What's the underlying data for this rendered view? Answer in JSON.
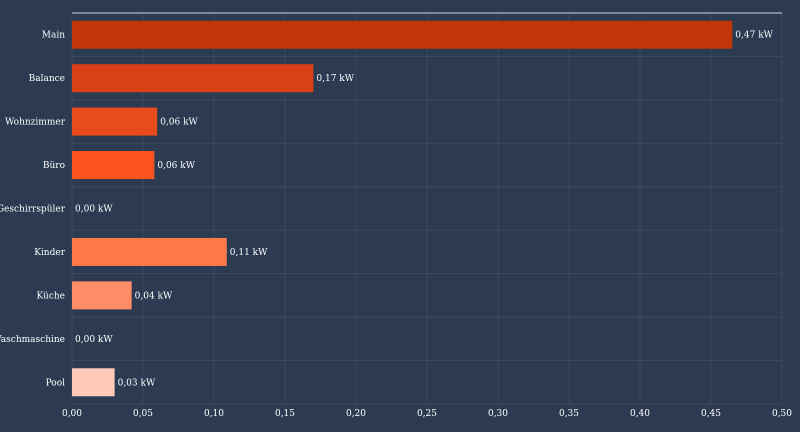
{
  "chart_data": {
    "type": "bar",
    "orientation": "horizontal",
    "title": "",
    "xlabel": "",
    "ylabel": "",
    "unit": "kW",
    "xlim": [
      0,
      0.5
    ],
    "grid": true,
    "categories": [
      "Main",
      "Balance",
      "Wohnzimmer",
      "Büro",
      "Geschirrspüler",
      "Kinder",
      "Küche",
      "Waschmaschine",
      "Pool"
    ],
    "values": [
      0.465,
      0.17,
      0.06,
      0.058,
      0.0,
      0.109,
      0.042,
      0.0,
      0.03
    ],
    "data_labels": [
      "0,47 kW",
      "0,17 kW",
      "0,06 kW",
      "0,06 kW",
      "0,00 kW",
      "0,11 kW",
      "0,04 kW",
      "0,00 kW",
      "0,03 kW"
    ],
    "x_ticks": [
      "0,00",
      "0,05",
      "0,10",
      "0,15",
      "0,20",
      "0,25",
      "0,30",
      "0,35",
      "0,40",
      "0,45",
      "0,50"
    ],
    "tick_values": [
      0,
      0.05,
      0.1,
      0.15,
      0.2,
      0.25,
      0.3,
      0.35,
      0.4,
      0.45,
      0.5
    ],
    "colors": [
      "#c0350c",
      "#d94016",
      "#e84c1c",
      "#fb5420",
      "#ff7040",
      "#ff7a48",
      "#ff8c68",
      "#ffa888",
      "#ffcbb8"
    ],
    "background": "#2c3b52",
    "grid_color": "#3a4a62",
    "text_color": "#ffffff"
  }
}
